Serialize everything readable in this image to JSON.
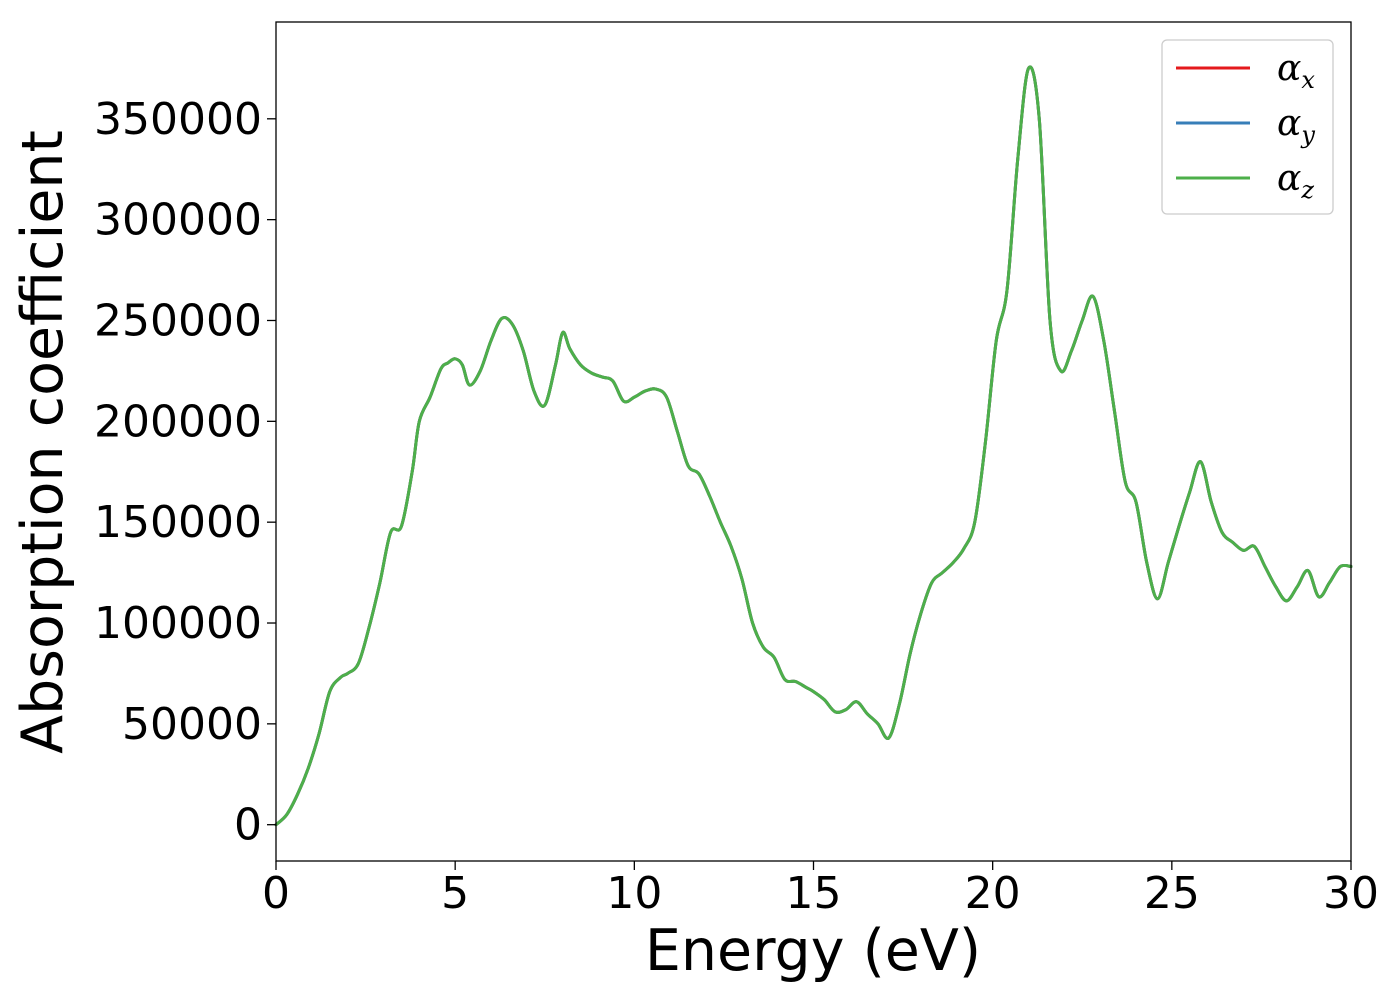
{
  "chart_data": {
    "type": "line",
    "xlabel": "Energy (eV)",
    "ylabel": "Absorption coefficient",
    "xlim": [
      0,
      30
    ],
    "ylim": [
      -18000,
      398000
    ],
    "xticks": [
      "0",
      "5",
      "10",
      "15",
      "20",
      "25",
      "30"
    ],
    "yticks": [
      "0",
      "50000",
      "100000",
      "150000",
      "200000",
      "250000",
      "300000",
      "350000"
    ],
    "grid": false,
    "legend_position": "top-right",
    "x": [
      0,
      0.3,
      0.6,
      0.9,
      1.2,
      1.5,
      1.8,
      2.0,
      2.3,
      2.6,
      2.9,
      3.2,
      3.5,
      3.8,
      4.0,
      4.3,
      4.6,
      4.8,
      5.0,
      5.2,
      5.4,
      5.7,
      6.0,
      6.3,
      6.6,
      6.9,
      7.2,
      7.5,
      7.8,
      8.0,
      8.2,
      8.5,
      8.8,
      9.1,
      9.4,
      9.7,
      10.0,
      10.3,
      10.6,
      10.9,
      11.2,
      11.5,
      11.8,
      12.1,
      12.4,
      12.7,
      13.0,
      13.3,
      13.6,
      13.9,
      14.2,
      14.5,
      14.8,
      15.0,
      15.3,
      15.6,
      15.9,
      16.2,
      16.5,
      16.8,
      17.1,
      17.4,
      17.7,
      18.0,
      18.3,
      18.6,
      18.9,
      19.2,
      19.5,
      19.8,
      20.1,
      20.4,
      20.7,
      21.0,
      21.3,
      21.6,
      21.9,
      22.2,
      22.5,
      22.8,
      23.1,
      23.4,
      23.7,
      24.0,
      24.3,
      24.6,
      24.9,
      25.2,
      25.5,
      25.8,
      26.1,
      26.4,
      26.7,
      27.0,
      27.3,
      27.6,
      27.9,
      28.2,
      28.5,
      28.8,
      29.1,
      29.4,
      29.7,
      30.0
    ],
    "series": [
      {
        "name": "αx",
        "color": "#e41a1c",
        "values": [
          0,
          5000,
          15000,
          28000,
          45000,
          66000,
          73000,
          75000,
          80000,
          98000,
          120000,
          145000,
          148000,
          175000,
          200000,
          212000,
          226000,
          229000,
          231000,
          228000,
          218000,
          225000,
          240000,
          251000,
          248000,
          235000,
          215000,
          208000,
          228000,
          244000,
          236000,
          228000,
          224000,
          222000,
          220000,
          210000,
          212000,
          215000,
          216000,
          212000,
          195000,
          178000,
          174000,
          163000,
          150000,
          138000,
          122000,
          100000,
          88000,
          83000,
          72000,
          71000,
          68000,
          66000,
          62000,
          56000,
          57000,
          61000,
          55000,
          50000,
          43000,
          60000,
          85000,
          105000,
          120000,
          125000,
          130000,
          137000,
          150000,
          190000,
          240000,
          265000,
          330000,
          375000,
          350000,
          250000,
          225000,
          235000,
          250000,
          262000,
          240000,
          205000,
          170000,
          160000,
          130000,
          112000,
          130000,
          148000,
          165000,
          180000,
          160000,
          145000,
          140000,
          136000,
          138000,
          128000,
          118000,
          111000,
          118000,
          126000,
          113000,
          120000,
          128000,
          128000
        ]
      },
      {
        "name": "αy",
        "color": "#377eb8",
        "values": [
          0,
          5000,
          15000,
          28000,
          45000,
          66000,
          73000,
          75000,
          80000,
          98000,
          120000,
          145000,
          148000,
          175000,
          200000,
          212000,
          226000,
          229000,
          231000,
          228000,
          218000,
          225000,
          240000,
          251000,
          248000,
          235000,
          215000,
          208000,
          228000,
          244000,
          236000,
          228000,
          224000,
          222000,
          220000,
          210000,
          212000,
          215000,
          216000,
          212000,
          195000,
          178000,
          174000,
          163000,
          150000,
          138000,
          122000,
          100000,
          88000,
          83000,
          72000,
          71000,
          68000,
          66000,
          62000,
          56000,
          57000,
          61000,
          55000,
          50000,
          43000,
          60000,
          85000,
          105000,
          120000,
          125000,
          130000,
          137000,
          150000,
          190000,
          240000,
          265000,
          330000,
          375000,
          350000,
          250000,
          225000,
          235000,
          250000,
          262000,
          240000,
          205000,
          170000,
          160000,
          130000,
          112000,
          130000,
          148000,
          165000,
          180000,
          160000,
          145000,
          140000,
          136000,
          138000,
          128000,
          118000,
          111000,
          118000,
          126000,
          113000,
          120000,
          128000,
          128000
        ]
      },
      {
        "name": "αz",
        "color": "#4daf4a",
        "values": [
          0,
          5000,
          15000,
          28000,
          45000,
          66000,
          73000,
          75000,
          80000,
          98000,
          120000,
          145000,
          148000,
          175000,
          200000,
          212000,
          226000,
          229000,
          231000,
          228000,
          218000,
          225000,
          240000,
          251000,
          248000,
          235000,
          215000,
          208000,
          228000,
          244000,
          236000,
          228000,
          224000,
          222000,
          220000,
          210000,
          212000,
          215000,
          216000,
          212000,
          195000,
          178000,
          174000,
          163000,
          150000,
          138000,
          122000,
          100000,
          88000,
          83000,
          72000,
          71000,
          68000,
          66000,
          62000,
          56000,
          57000,
          61000,
          55000,
          50000,
          43000,
          60000,
          85000,
          105000,
          120000,
          125000,
          130000,
          137000,
          150000,
          190000,
          240000,
          265000,
          330000,
          375000,
          350000,
          250000,
          225000,
          235000,
          250000,
          262000,
          240000,
          205000,
          170000,
          160000,
          130000,
          112000,
          130000,
          148000,
          165000,
          180000,
          160000,
          145000,
          140000,
          136000,
          138000,
          128000,
          118000,
          111000,
          118000,
          126000,
          113000,
          120000,
          128000,
          128000
        ]
      }
    ],
    "legend": [
      {
        "symbol": "α",
        "subscript": "x",
        "color": "#e41a1c"
      },
      {
        "symbol": "α",
        "subscript": "y",
        "color": "#377eb8"
      },
      {
        "symbol": "α",
        "subscript": "z",
        "color": "#4daf4a"
      }
    ]
  }
}
